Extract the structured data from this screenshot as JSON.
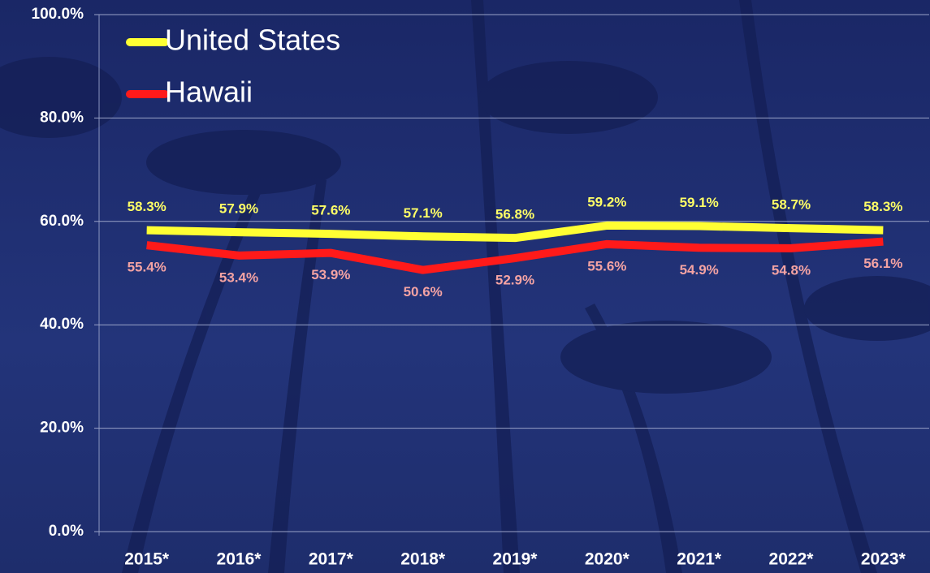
{
  "chart_data": {
    "type": "line",
    "categories": [
      "2015*",
      "2016*",
      "2017*",
      "2018*",
      "2019*",
      "2020*",
      "2021*",
      "2022*",
      "2023*"
    ],
    "series": [
      {
        "name": "United States",
        "color": "#ffff33",
        "label_color": "#ffff66",
        "values": [
          58.3,
          57.9,
          57.6,
          57.1,
          56.8,
          59.2,
          59.1,
          58.7,
          58.3
        ],
        "value_labels": [
          "58.3%",
          "57.9%",
          "57.6%",
          "57.1%",
          "56.8%",
          "59.2%",
          "59.1%",
          "58.7%",
          "58.3%"
        ]
      },
      {
        "name": "Hawaii",
        "color": "#ff1a1a",
        "label_color": "#f4a3a3",
        "values": [
          55.4,
          53.4,
          53.9,
          50.6,
          52.9,
          55.6,
          54.9,
          54.8,
          56.1
        ],
        "value_labels": [
          "55.4%",
          "53.4%",
          "53.9%",
          "50.6%",
          "52.9%",
          "55.6%",
          "54.9%",
          "54.8%",
          "56.1%"
        ]
      }
    ],
    "ylim": [
      0,
      100
    ],
    "yticks": [
      {
        "value": 0,
        "label": "0.0%"
      },
      {
        "value": 20,
        "label": "20.0%"
      },
      {
        "value": 40,
        "label": "40.0%"
      },
      {
        "value": 60,
        "label": "60.0%"
      },
      {
        "value": 80,
        "label": "80.0%"
      },
      {
        "value": 100,
        "label": "100.0%"
      }
    ],
    "grid": true,
    "legend": "top-left"
  }
}
